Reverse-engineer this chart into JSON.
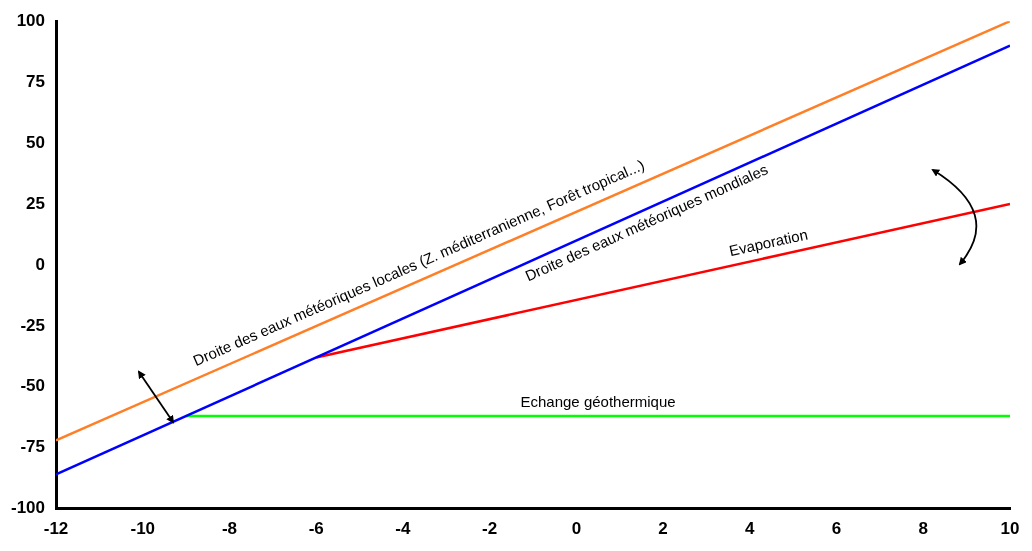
{
  "chart_data": {
    "type": "line",
    "series": [
      {
        "color": "#ff7f27",
        "x": [
          -12,
          10
        ],
        "values": [
          -72,
          100
        ]
      },
      {
        "color": "#0000ff",
        "x": [
          -12,
          10
        ],
        "values": [
          -86,
          90
        ]
      },
      {
        "color": "#ff0000",
        "x": [
          -6,
          10
        ],
        "values": [
          -38,
          25
        ]
      },
      {
        "color": "#00ff00",
        "x": [
          -9,
          10
        ],
        "values": [
          -62,
          -62
        ]
      }
    ],
    "xlim": [
      -12,
      10
    ],
    "xticks": [
      -12,
      -10,
      -8,
      -6,
      -4,
      -2,
      0,
      2,
      4,
      6,
      8,
      10
    ],
    "ylim": [
      -100,
      100
    ],
    "yticks": [
      -100,
      -75,
      -50,
      -25,
      0,
      25,
      50,
      75,
      100
    ],
    "grid": false,
    "legend": false,
    "marker": "none",
    "line_style": "solid",
    "annotations": [
      {
        "text": "Droite des eaux météoriques locales (Z. méditerranienne, Forêt tropical...)",
        "x": -3.5,
        "y": -4.6
      },
      {
        "text": "Droite des eaux météoriques mondiales",
        "x": 1.5,
        "y": 22
      },
      {
        "text": "Evaporation",
        "x": 4.5,
        "y": 3.3
      },
      {
        "text": "Echange géothermique",
        "x": 0.5,
        "y": -62
      }
    ]
  }
}
